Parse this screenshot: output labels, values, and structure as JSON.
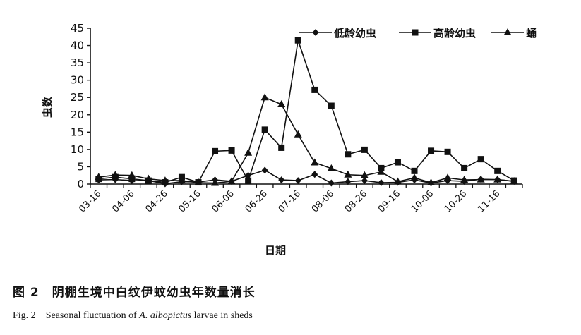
{
  "chart_data": {
    "type": "line",
    "ylabel": "虫数",
    "xlabel": "日期",
    "ylim": [
      0,
      45
    ],
    "yticks": [
      "0",
      "5",
      "10",
      "15",
      "20",
      "25",
      "30",
      "35",
      "40",
      "45"
    ],
    "x": [
      "03-16",
      "03-26",
      "04-06",
      "04-16",
      "04-26",
      "05-06",
      "05-16",
      "05-26",
      "06-06",
      "06-16",
      "06-26",
      "07-06",
      "07-16",
      "07-26",
      "08-06",
      "08-16",
      "08-26",
      "09-06",
      "09-16",
      "09-26",
      "10-06",
      "10-16",
      "10-26",
      "11-06",
      "11-16",
      "11-26"
    ],
    "xtick_labels": [
      "03-16",
      "04-06",
      "04-26",
      "05-16",
      "06-06",
      "06-26",
      "07-16",
      "08-06",
      "08-26",
      "09-16",
      "10-06",
      "10-26",
      "11-16"
    ],
    "legend_position": "top-right",
    "series": [
      {
        "name": "低龄幼虫",
        "marker": "diamond",
        "values": [
          1.2,
          1.3,
          1.0,
          1.0,
          0.1,
          0.7,
          0.6,
          1.2,
          0.8,
          2.5,
          4.0,
          1.2,
          1.0,
          2.8,
          0.3,
          0.7,
          1.0,
          0.4,
          0.5,
          1.2,
          0.3,
          1.0,
          0.8,
          1.4,
          1.3,
          0.8
        ]
      },
      {
        "name": "高龄幼虫",
        "marker": "square",
        "values": [
          1.5,
          2.0,
          1.5,
          1.0,
          0.5,
          2.0,
          0.5,
          9.5,
          9.7,
          1.0,
          15.7,
          10.5,
          41.5,
          27.2,
          22.6,
          8.6,
          9.9,
          4.6,
          6.3,
          3.8,
          9.6,
          9.3,
          4.6,
          7.2,
          3.8,
          1.0
        ]
      },
      {
        "name": "蛹",
        "marker": "triangle",
        "values": [
          2.0,
          2.6,
          2.5,
          1.5,
          1.0,
          1.0,
          0.4,
          0.3,
          0.8,
          9.0,
          25.0,
          23.0,
          14.3,
          6.2,
          4.5,
          2.7,
          2.5,
          3.5,
          0.7,
          1.8,
          0.4,
          1.8,
          1.2,
          1.3,
          1.3,
          0.8
        ]
      }
    ]
  },
  "caption": {
    "cn_number": "图 2",
    "cn_text": "阴棚生境中白纹伊蚊幼虫年数量消长",
    "en_number": "Fig. 2",
    "en_text_before": "Seasonal fluctuation of ",
    "en_species": "A. albopictus",
    "en_text_after": " larvae in sheds"
  }
}
